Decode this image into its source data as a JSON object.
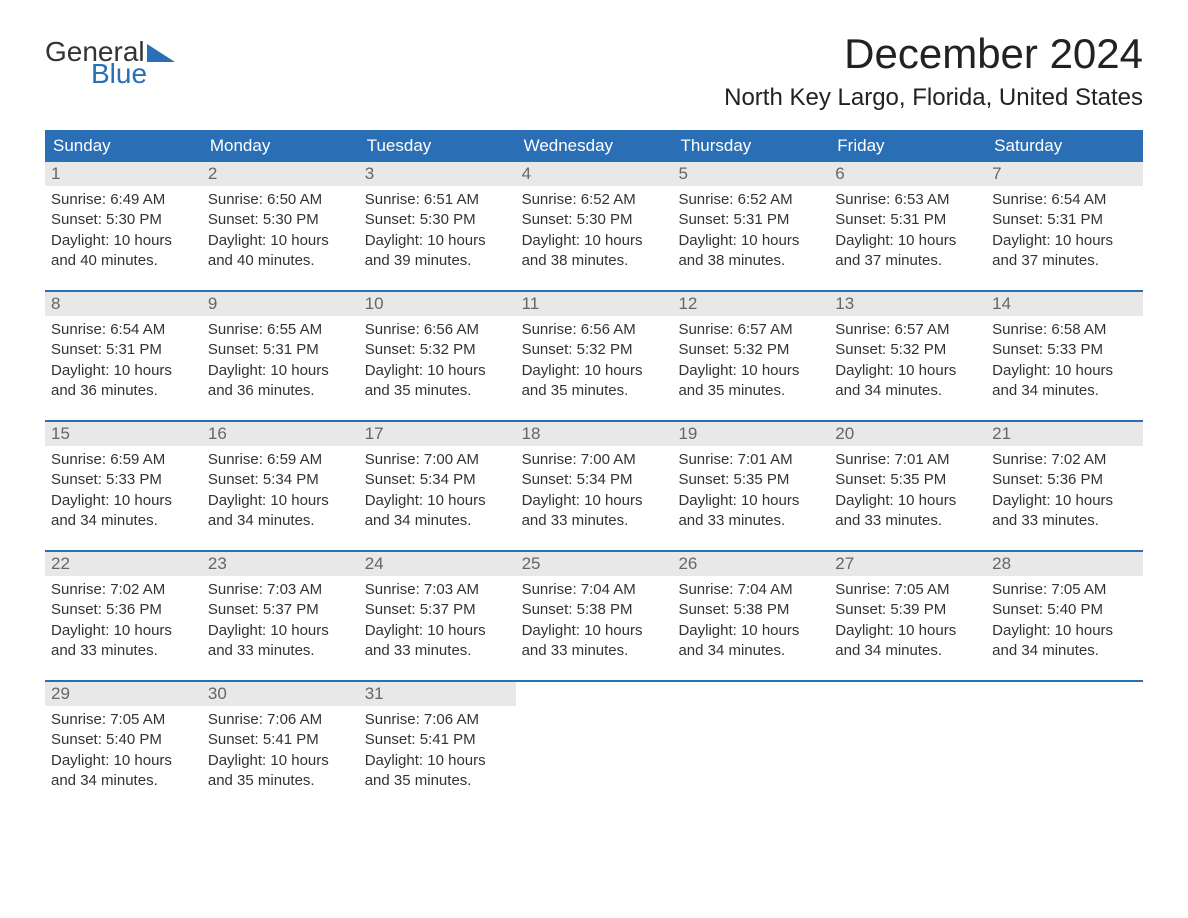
{
  "logo": {
    "word1": "General",
    "word2": "Blue",
    "word1_color": "#333333",
    "word2_color": "#2a6fb5",
    "shape_color": "#2a6fb5"
  },
  "title": {
    "month_year": "December 2024",
    "location": "North Key Largo, Florida, United States",
    "title_fontsize": 42,
    "location_fontsize": 24,
    "text_color": "#222222"
  },
  "calendar": {
    "header_bg": "#2a6fb5",
    "header_text_color": "#ffffff",
    "daynum_bg": "#e8e8e8",
    "daynum_color": "#666666",
    "week_divider_color": "#2a6fb5",
    "body_text_color": "#333333",
    "background_color": "#ffffff",
    "columns": [
      "Sunday",
      "Monday",
      "Tuesday",
      "Wednesday",
      "Thursday",
      "Friday",
      "Saturday"
    ],
    "weeks": [
      [
        {
          "n": "1",
          "sunrise": "Sunrise: 6:49 AM",
          "sunset": "Sunset: 5:30 PM",
          "daylight1": "Daylight: 10 hours",
          "daylight2": "and 40 minutes."
        },
        {
          "n": "2",
          "sunrise": "Sunrise: 6:50 AM",
          "sunset": "Sunset: 5:30 PM",
          "daylight1": "Daylight: 10 hours",
          "daylight2": "and 40 minutes."
        },
        {
          "n": "3",
          "sunrise": "Sunrise: 6:51 AM",
          "sunset": "Sunset: 5:30 PM",
          "daylight1": "Daylight: 10 hours",
          "daylight2": "and 39 minutes."
        },
        {
          "n": "4",
          "sunrise": "Sunrise: 6:52 AM",
          "sunset": "Sunset: 5:30 PM",
          "daylight1": "Daylight: 10 hours",
          "daylight2": "and 38 minutes."
        },
        {
          "n": "5",
          "sunrise": "Sunrise: 6:52 AM",
          "sunset": "Sunset: 5:31 PM",
          "daylight1": "Daylight: 10 hours",
          "daylight2": "and 38 minutes."
        },
        {
          "n": "6",
          "sunrise": "Sunrise: 6:53 AM",
          "sunset": "Sunset: 5:31 PM",
          "daylight1": "Daylight: 10 hours",
          "daylight2": "and 37 minutes."
        },
        {
          "n": "7",
          "sunrise": "Sunrise: 6:54 AM",
          "sunset": "Sunset: 5:31 PM",
          "daylight1": "Daylight: 10 hours",
          "daylight2": "and 37 minutes."
        }
      ],
      [
        {
          "n": "8",
          "sunrise": "Sunrise: 6:54 AM",
          "sunset": "Sunset: 5:31 PM",
          "daylight1": "Daylight: 10 hours",
          "daylight2": "and 36 minutes."
        },
        {
          "n": "9",
          "sunrise": "Sunrise: 6:55 AM",
          "sunset": "Sunset: 5:31 PM",
          "daylight1": "Daylight: 10 hours",
          "daylight2": "and 36 minutes."
        },
        {
          "n": "10",
          "sunrise": "Sunrise: 6:56 AM",
          "sunset": "Sunset: 5:32 PM",
          "daylight1": "Daylight: 10 hours",
          "daylight2": "and 35 minutes."
        },
        {
          "n": "11",
          "sunrise": "Sunrise: 6:56 AM",
          "sunset": "Sunset: 5:32 PM",
          "daylight1": "Daylight: 10 hours",
          "daylight2": "and 35 minutes."
        },
        {
          "n": "12",
          "sunrise": "Sunrise: 6:57 AM",
          "sunset": "Sunset: 5:32 PM",
          "daylight1": "Daylight: 10 hours",
          "daylight2": "and 35 minutes."
        },
        {
          "n": "13",
          "sunrise": "Sunrise: 6:57 AM",
          "sunset": "Sunset: 5:32 PM",
          "daylight1": "Daylight: 10 hours",
          "daylight2": "and 34 minutes."
        },
        {
          "n": "14",
          "sunrise": "Sunrise: 6:58 AM",
          "sunset": "Sunset: 5:33 PM",
          "daylight1": "Daylight: 10 hours",
          "daylight2": "and 34 minutes."
        }
      ],
      [
        {
          "n": "15",
          "sunrise": "Sunrise: 6:59 AM",
          "sunset": "Sunset: 5:33 PM",
          "daylight1": "Daylight: 10 hours",
          "daylight2": "and 34 minutes."
        },
        {
          "n": "16",
          "sunrise": "Sunrise: 6:59 AM",
          "sunset": "Sunset: 5:34 PM",
          "daylight1": "Daylight: 10 hours",
          "daylight2": "and 34 minutes."
        },
        {
          "n": "17",
          "sunrise": "Sunrise: 7:00 AM",
          "sunset": "Sunset: 5:34 PM",
          "daylight1": "Daylight: 10 hours",
          "daylight2": "and 34 minutes."
        },
        {
          "n": "18",
          "sunrise": "Sunrise: 7:00 AM",
          "sunset": "Sunset: 5:34 PM",
          "daylight1": "Daylight: 10 hours",
          "daylight2": "and 33 minutes."
        },
        {
          "n": "19",
          "sunrise": "Sunrise: 7:01 AM",
          "sunset": "Sunset: 5:35 PM",
          "daylight1": "Daylight: 10 hours",
          "daylight2": "and 33 minutes."
        },
        {
          "n": "20",
          "sunrise": "Sunrise: 7:01 AM",
          "sunset": "Sunset: 5:35 PM",
          "daylight1": "Daylight: 10 hours",
          "daylight2": "and 33 minutes."
        },
        {
          "n": "21",
          "sunrise": "Sunrise: 7:02 AM",
          "sunset": "Sunset: 5:36 PM",
          "daylight1": "Daylight: 10 hours",
          "daylight2": "and 33 minutes."
        }
      ],
      [
        {
          "n": "22",
          "sunrise": "Sunrise: 7:02 AM",
          "sunset": "Sunset: 5:36 PM",
          "daylight1": "Daylight: 10 hours",
          "daylight2": "and 33 minutes."
        },
        {
          "n": "23",
          "sunrise": "Sunrise: 7:03 AM",
          "sunset": "Sunset: 5:37 PM",
          "daylight1": "Daylight: 10 hours",
          "daylight2": "and 33 minutes."
        },
        {
          "n": "24",
          "sunrise": "Sunrise: 7:03 AM",
          "sunset": "Sunset: 5:37 PM",
          "daylight1": "Daylight: 10 hours",
          "daylight2": "and 33 minutes."
        },
        {
          "n": "25",
          "sunrise": "Sunrise: 7:04 AM",
          "sunset": "Sunset: 5:38 PM",
          "daylight1": "Daylight: 10 hours",
          "daylight2": "and 33 minutes."
        },
        {
          "n": "26",
          "sunrise": "Sunrise: 7:04 AM",
          "sunset": "Sunset: 5:38 PM",
          "daylight1": "Daylight: 10 hours",
          "daylight2": "and 34 minutes."
        },
        {
          "n": "27",
          "sunrise": "Sunrise: 7:05 AM",
          "sunset": "Sunset: 5:39 PM",
          "daylight1": "Daylight: 10 hours",
          "daylight2": "and 34 minutes."
        },
        {
          "n": "28",
          "sunrise": "Sunrise: 7:05 AM",
          "sunset": "Sunset: 5:40 PM",
          "daylight1": "Daylight: 10 hours",
          "daylight2": "and 34 minutes."
        }
      ],
      [
        {
          "n": "29",
          "sunrise": "Sunrise: 7:05 AM",
          "sunset": "Sunset: 5:40 PM",
          "daylight1": "Daylight: 10 hours",
          "daylight2": "and 34 minutes."
        },
        {
          "n": "30",
          "sunrise": "Sunrise: 7:06 AM",
          "sunset": "Sunset: 5:41 PM",
          "daylight1": "Daylight: 10 hours",
          "daylight2": "and 35 minutes."
        },
        {
          "n": "31",
          "sunrise": "Sunrise: 7:06 AM",
          "sunset": "Sunset: 5:41 PM",
          "daylight1": "Daylight: 10 hours",
          "daylight2": "and 35 minutes."
        },
        {
          "empty": true
        },
        {
          "empty": true
        },
        {
          "empty": true
        },
        {
          "empty": true
        }
      ]
    ]
  }
}
